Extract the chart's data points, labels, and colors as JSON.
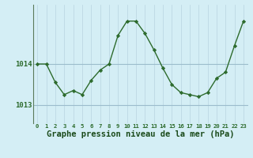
{
  "x": [
    0,
    1,
    2,
    3,
    4,
    5,
    6,
    7,
    8,
    9,
    10,
    11,
    12,
    13,
    14,
    15,
    16,
    17,
    18,
    19,
    20,
    21,
    22,
    23
  ],
  "y": [
    1014.0,
    1014.0,
    1013.55,
    1013.25,
    1013.35,
    1013.25,
    1013.6,
    1013.85,
    1014.0,
    1014.7,
    1015.05,
    1015.05,
    1014.75,
    1014.35,
    1013.9,
    1013.5,
    1013.3,
    1013.25,
    1013.2,
    1013.3,
    1013.65,
    1013.8,
    1014.45,
    1015.05
  ],
  "line_color": "#2d6b2d",
  "marker": "D",
  "marker_size": 2.2,
  "bg_color": "#d4eef5",
  "grid_color_major": "#9bbccc",
  "grid_color_minor": "#b8d4e0",
  "xlabel": "Graphe pression niveau de la mer (hPa)",
  "xlabel_fontsize": 7.5,
  "xlabel_color": "#1a4a1a",
  "ytick_labels": [
    "1013",
    "1014"
  ],
  "ytick_values": [
    1013.0,
    1014.0
  ],
  "ylim": [
    1012.55,
    1015.45
  ],
  "xlim": [
    -0.5,
    23.5
  ],
  "tick_color": "#2d6b2d",
  "ytick_fontsize": 6.5,
  "xtick_fontsize": 5.2,
  "linewidth": 1.0
}
